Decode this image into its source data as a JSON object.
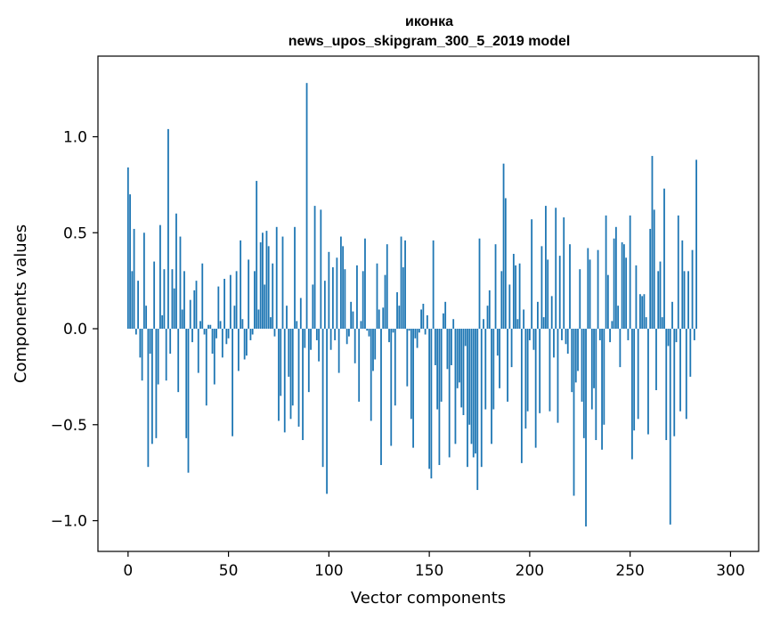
{
  "chart_data": {
    "type": "bar",
    "title_line1": "иконка",
    "title_line2": "news_upos_skipgram_300_5_2019 model",
    "xlabel": "Vector components",
    "ylabel": "Components values",
    "xlim": [
      -15,
      314
    ],
    "ylim": [
      -1.16,
      1.42
    ],
    "x_ticks": [
      0,
      50,
      100,
      150,
      200,
      250,
      300
    ],
    "x_tick_labels": [
      "0",
      "50",
      "100",
      "150",
      "200",
      "250",
      "300"
    ],
    "y_ticks": [
      -1.0,
      -0.5,
      0.0,
      0.5,
      1.0
    ],
    "y_tick_labels": [
      "−1.0",
      "−0.5",
      "0.0",
      "0.5",
      "1.0"
    ],
    "bar_color": "#1f77b4",
    "values": [
      0.84,
      0.7,
      0.3,
      0.52,
      -0.03,
      0.25,
      -0.15,
      -0.27,
      0.5,
      0.12,
      -0.72,
      -0.13,
      -0.6,
      0.35,
      -0.57,
      -0.29,
      0.54,
      0.07,
      0.31,
      -0.27,
      1.04,
      -0.13,
      0.31,
      0.21,
      0.6,
      -0.33,
      0.48,
      0.1,
      0.3,
      -0.57,
      -0.75,
      0.15,
      -0.07,
      0.2,
      0.25,
      -0.23,
      0.04,
      0.34,
      -0.03,
      -0.4,
      0.02,
      0.02,
      -0.13,
      -0.29,
      -0.05,
      0.22,
      0.04,
      -0.15,
      0.26,
      -0.08,
      -0.05,
      0.28,
      -0.56,
      0.12,
      0.3,
      -0.22,
      0.46,
      0.05,
      -0.16,
      -0.14,
      0.36,
      -0.06,
      -0.03,
      0.3,
      0.77,
      0.1,
      0.45,
      0.5,
      0.23,
      0.51,
      0.43,
      0.06,
      0.34,
      -0.04,
      0.53,
      -0.48,
      -0.35,
      0.48,
      -0.54,
      0.12,
      -0.25,
      -0.47,
      -0.4,
      0.53,
      0.04,
      -0.51,
      0.16,
      -0.58,
      -0.1,
      1.28,
      -0.33,
      -0.11,
      0.23,
      0.64,
      -0.06,
      -0.17,
      0.62,
      -0.72,
      0.25,
      -0.86,
      0.4,
      -0.11,
      0.32,
      -0.06,
      0.37,
      -0.23,
      0.48,
      0.43,
      0.31,
      -0.08,
      -0.04,
      0.14,
      0.09,
      -0.18,
      0.33,
      -0.38,
      0.04,
      0.3,
      0.47,
      -0.01,
      -0.04,
      -0.48,
      -0.22,
      -0.16,
      0.34,
      0.1,
      -0.71,
      0.11,
      0.28,
      0.44,
      -0.07,
      -0.61,
      -0.02,
      -0.4,
      0.19,
      0.12,
      0.48,
      0.32,
      0.46,
      -0.3,
      -0.01,
      -0.47,
      -0.62,
      -0.05,
      -0.1,
      -0.02,
      0.1,
      0.13,
      -0.03,
      0.07,
      -0.73,
      -0.78,
      0.46,
      -0.19,
      -0.42,
      -0.71,
      -0.38,
      0.08,
      0.14,
      -0.21,
      -0.67,
      -0.19,
      0.05,
      -0.6,
      -0.31,
      -0.28,
      -0.41,
      -0.45,
      -0.09,
      -0.72,
      -0.5,
      -0.6,
      -0.67,
      -0.65,
      -0.84,
      0.47,
      -0.72,
      0.05,
      -0.42,
      0.12,
      0.2,
      -0.6,
      -0.42,
      0.44,
      -0.14,
      -0.31,
      0.3,
      0.86,
      0.68,
      -0.38,
      0.23,
      -0.2,
      0.39,
      0.33,
      0.05,
      0.34,
      -0.7,
      0.1,
      -0.52,
      -0.43,
      -0.06,
      0.57,
      -0.11,
      -0.62,
      0.14,
      -0.44,
      0.43,
      0.06,
      0.64,
      0.36,
      -0.43,
      0.17,
      -0.15,
      0.63,
      -0.49,
      0.38,
      -0.06,
      0.58,
      -0.08,
      -0.13,
      0.44,
      -0.33,
      -0.87,
      -0.28,
      -0.22,
      0.31,
      -0.38,
      -0.57,
      -1.03,
      0.42,
      0.36,
      -0.42,
      -0.31,
      -0.58,
      0.41,
      -0.06,
      -0.63,
      -0.5,
      0.59,
      0.28,
      -0.07,
      0.04,
      0.47,
      0.53,
      0.12,
      -0.2,
      0.45,
      0.44,
      0.37,
      -0.06,
      0.59,
      -0.68,
      -0.53,
      0.33,
      -0.47,
      0.18,
      0.17,
      0.18,
      0.06,
      -0.55,
      0.52,
      0.9,
      0.62,
      -0.32,
      0.3,
      0.35,
      0.06,
      0.73,
      -0.58,
      -0.09,
      -1.02,
      0.14,
      -0.56,
      -0.07,
      0.59,
      -0.43,
      0.46,
      0.3,
      -0.47,
      0.3,
      -0.25,
      0.41,
      -0.06,
      0.88
    ]
  }
}
